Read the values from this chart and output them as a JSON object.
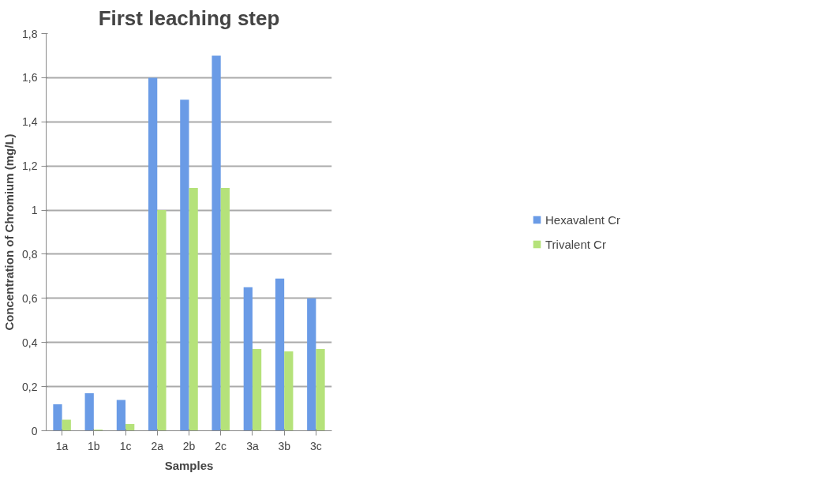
{
  "chart_data": {
    "type": "bar",
    "title": "First leaching step",
    "xlabel": "Samples",
    "ylabel": "Concentration of Chromium (mg/L)",
    "categories": [
      "1a",
      "1b",
      "1c",
      "2a",
      "2b",
      "2c",
      "3a",
      "3b",
      "3c"
    ],
    "series": [
      {
        "name": "Hexavalent Cr",
        "color": "#6a9be6",
        "values": [
          0.12,
          0.17,
          0.14,
          1.6,
          1.5,
          1.7,
          0.65,
          0.69,
          0.6
        ]
      },
      {
        "name": "Trivalent Cr",
        "color": "#b5e27a",
        "values": [
          0.05,
          0.005,
          0.03,
          1.0,
          1.1,
          1.1,
          0.37,
          0.36,
          0.37
        ]
      }
    ],
    "ylim": [
      0,
      1.8
    ],
    "yticks": [
      {
        "value": 0,
        "label": "0"
      },
      {
        "value": 0.2,
        "label": "0,2"
      },
      {
        "value": 0.4,
        "label": "0,4"
      },
      {
        "value": 0.6,
        "label": "0,6"
      },
      {
        "value": 0.8,
        "label": "0,8"
      },
      {
        "value": 1,
        "label": "1"
      },
      {
        "value": 1.2,
        "label": "1,2"
      },
      {
        "value": 1.4,
        "label": "1,4"
      },
      {
        "value": 1.6,
        "label": "1,6"
      },
      {
        "value": 1.8,
        "label": "1,8"
      }
    ],
    "grid": "y",
    "legend": "right"
  }
}
